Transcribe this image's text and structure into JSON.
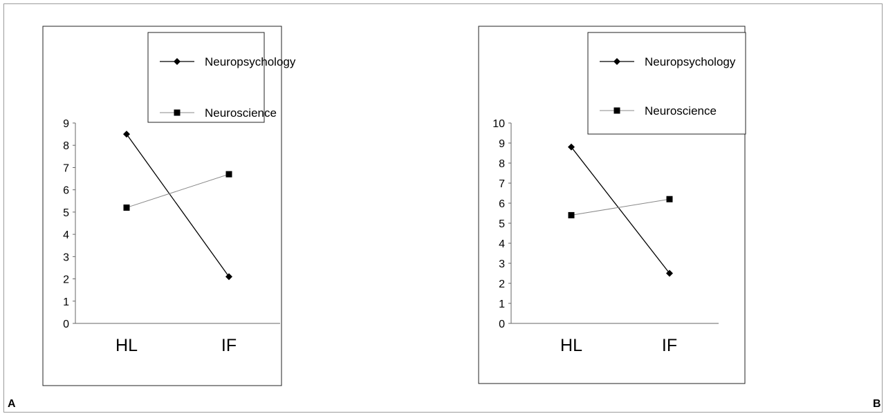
{
  "panels": [
    {
      "letter": "A"
    },
    {
      "letter": "B"
    }
  ],
  "chart_data": [
    {
      "type": "line",
      "categories": [
        "HL",
        "IF"
      ],
      "ylim": [
        0,
        9
      ],
      "yticks": [
        "0",
        "1",
        "2",
        "3",
        "4",
        "5",
        "6",
        "7",
        "8",
        "9"
      ],
      "series": [
        {
          "name": "Neuropsychology",
          "marker": "diamond",
          "color": "#000000",
          "values": [
            8.5,
            2.1
          ]
        },
        {
          "name": "Neuroscience",
          "marker": "square",
          "color": "#888888",
          "values": [
            5.2,
            6.7
          ]
        }
      ],
      "legend": "top-right",
      "grid": false
    },
    {
      "type": "line",
      "categories": [
        "HL",
        "IF"
      ],
      "ylim": [
        0,
        10
      ],
      "yticks": [
        "0",
        "1",
        "2",
        "3",
        "4",
        "5",
        "6",
        "7",
        "8",
        "9",
        "10"
      ],
      "series": [
        {
          "name": "Neuropsychology",
          "marker": "diamond",
          "color": "#000000",
          "values": [
            8.8,
            2.5
          ]
        },
        {
          "name": "Neuroscience",
          "marker": "square",
          "color": "#888888",
          "values": [
            5.4,
            6.2
          ]
        }
      ],
      "legend": "top-right",
      "grid": false
    }
  ]
}
